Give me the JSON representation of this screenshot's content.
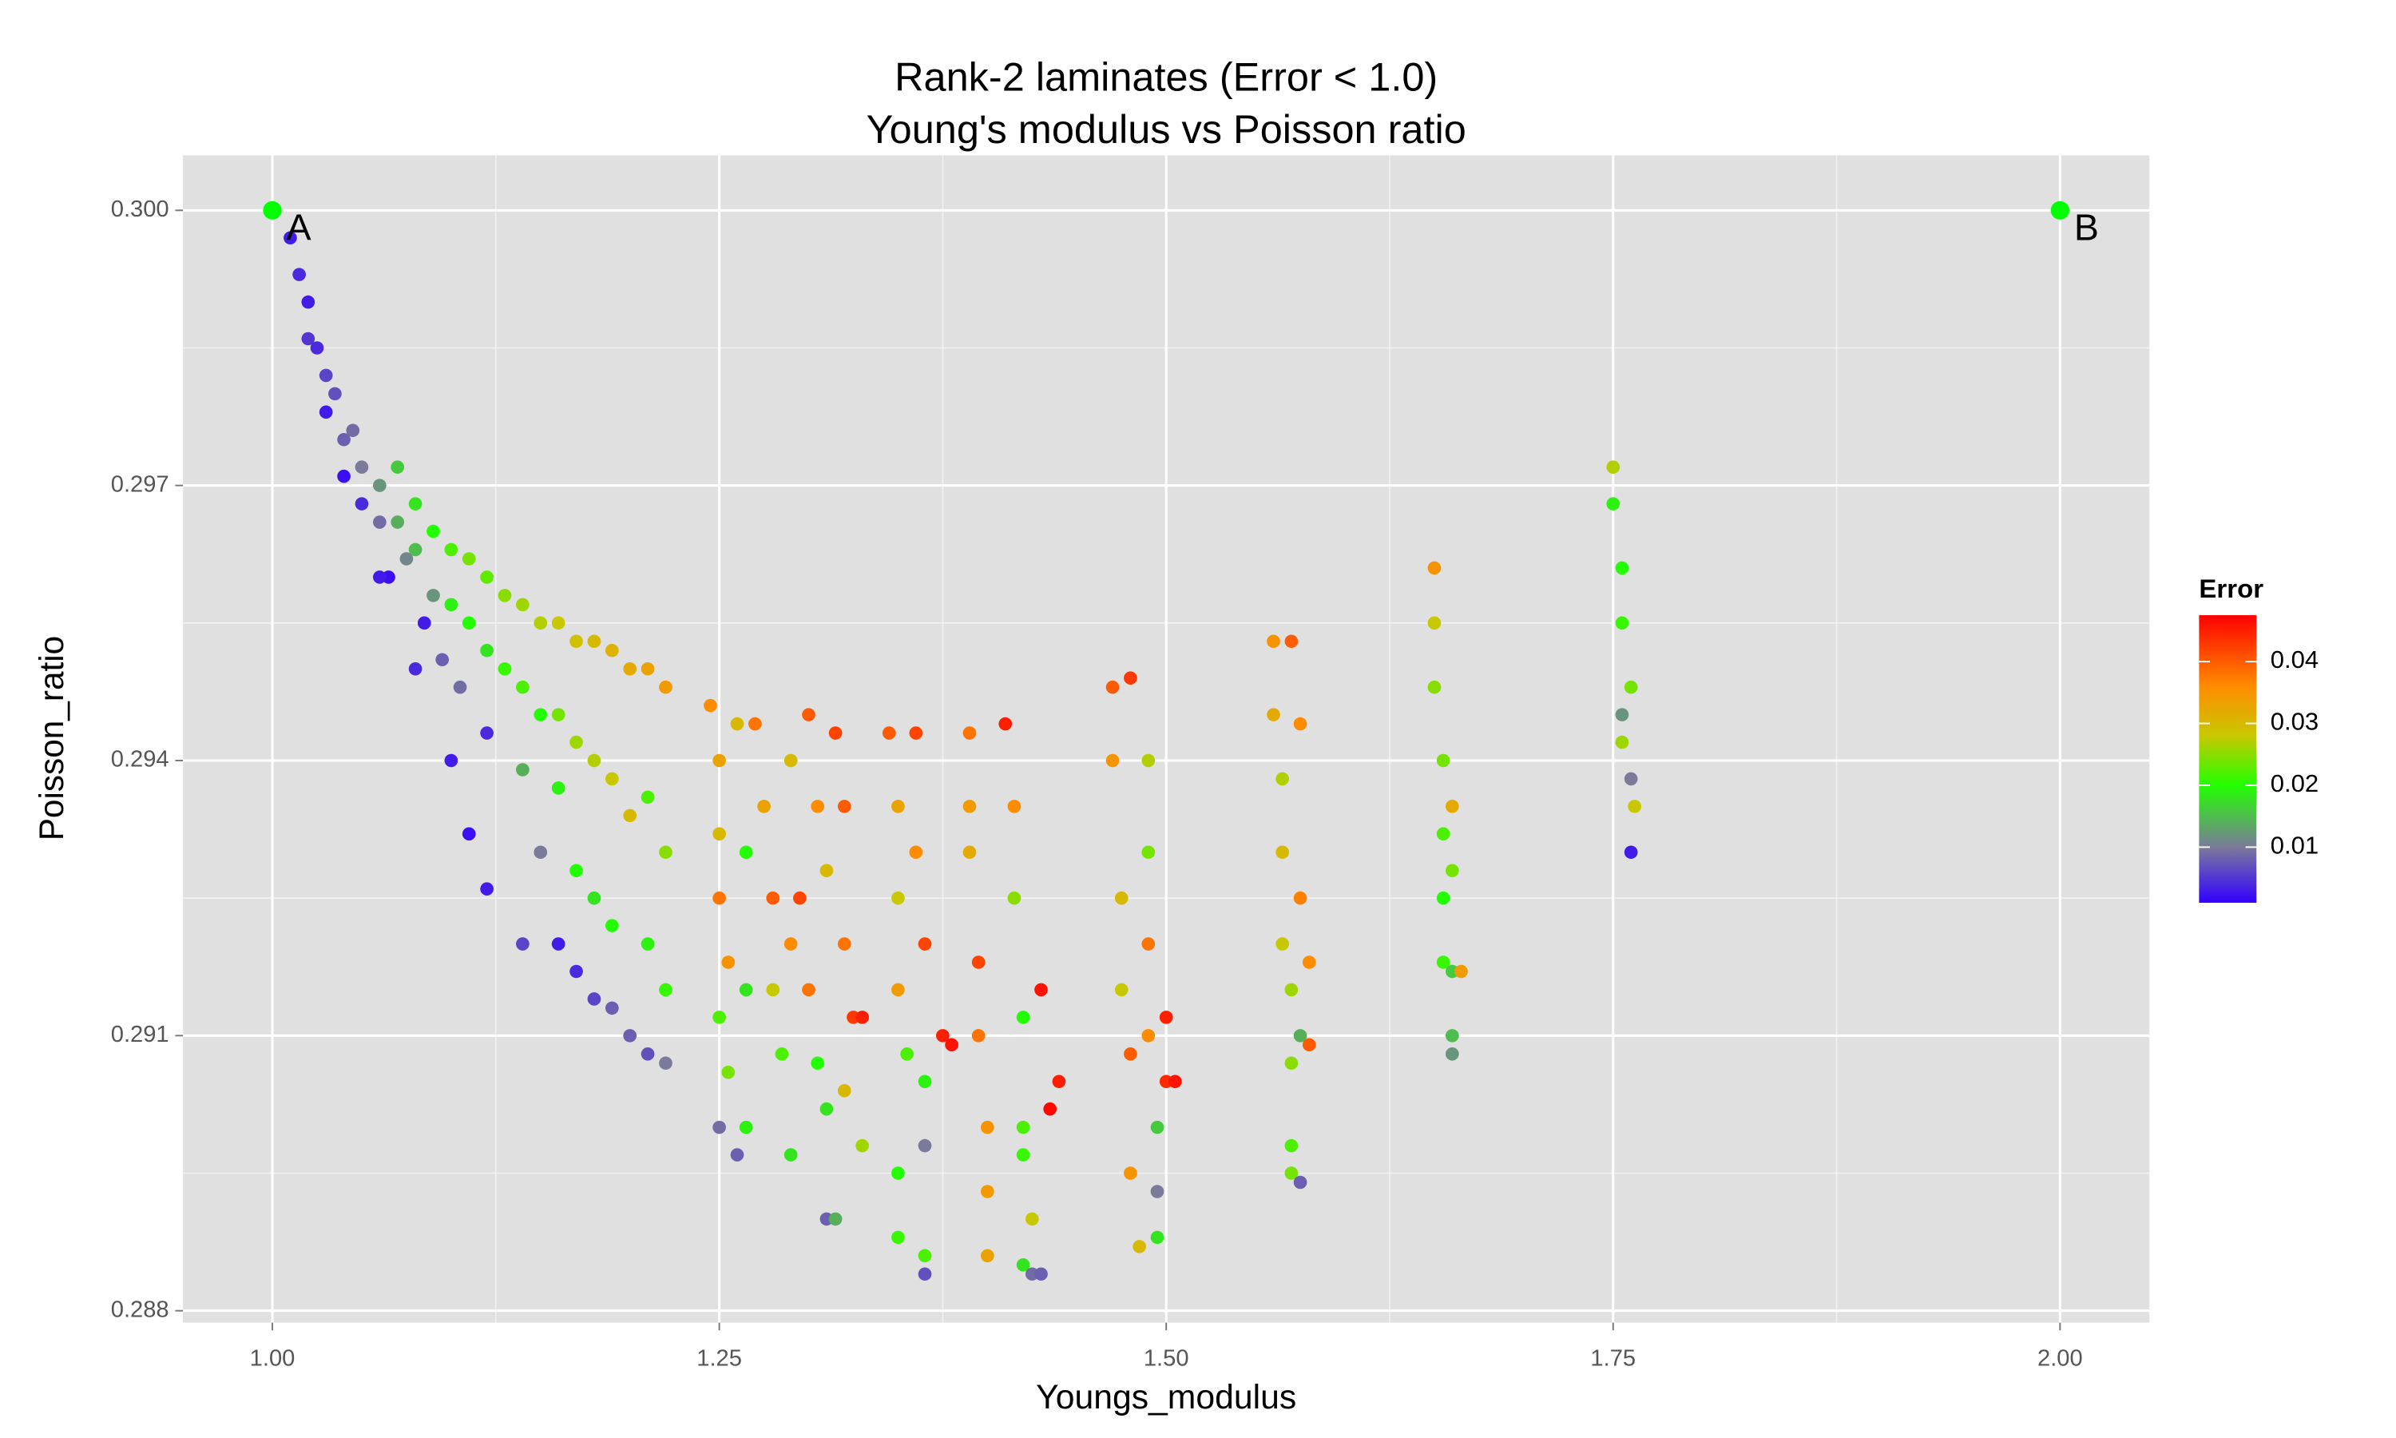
{
  "chart_data": {
    "type": "scatter",
    "title": [
      "Rank-2 laminates (Error < 1.0)",
      "Young's modulus vs Poisson ratio"
    ],
    "x_label": "Youngs_modulus",
    "y_label": "Poisson_ratio",
    "xlim": [
      0.95,
      2.05
    ],
    "ylim": [
      0.28787,
      0.3006
    ],
    "xticks": [
      {
        "value": 1.0,
        "label": "1.00"
      },
      1.25,
      {
        "value": 1.5,
        "label": "1.50"
      },
      1.75,
      {
        "value": 2.0,
        "label": "2.00"
      }
    ],
    "yticks": [
      0.288,
      0.291,
      0.294,
      0.297,
      {
        "value": 0.3,
        "label": "0.300"
      }
    ],
    "x_minor_grid": [
      1.125,
      1.375,
      1.625,
      1.875
    ],
    "y_minor_grid": [
      0.2895,
      0.2925,
      0.2955,
      0.2985
    ],
    "grid": true,
    "background": "#e0e0e0",
    "legend_position": "right",
    "colorbar": {
      "title": "Error",
      "lim": [
        0.001,
        0.0475
      ],
      "ticks": [
        0.01,
        0.02,
        0.03,
        0.04
      ],
      "stops": [
        {
          "value": 0.001,
          "color": "#3300ff"
        },
        {
          "value": 0.01,
          "color": "#7a7a9a"
        },
        {
          "value": 0.02,
          "color": "#22ff00"
        },
        {
          "value": 0.028,
          "color": "#c8c800"
        },
        {
          "value": 0.036,
          "color": "#ff8c00"
        },
        {
          "value": 0.0475,
          "color": "#ff0000"
        }
      ]
    },
    "annotations": [
      {
        "x": 1.0,
        "y": 0.3,
        "label": "A",
        "color": "#00ff00"
      },
      {
        "x": 2.0,
        "y": 0.3,
        "label": "B",
        "color": "#00ff00"
      }
    ],
    "x": [
      1.01,
      1.015,
      1.02,
      1.02,
      1.025,
      1.03,
      1.03,
      1.035,
      1.04,
      1.04,
      1.045,
      1.05,
      1.05,
      1.06,
      1.06,
      1.065,
      1.07,
      1.07,
      1.075,
      1.08,
      1.08,
      1.085,
      1.09,
      1.09,
      1.095,
      1.1,
      1.1,
      1.105,
      1.11,
      1.11,
      1.12,
      1.12,
      1.12,
      1.13,
      1.13,
      1.14,
      1.14,
      1.14,
      1.15,
      1.15,
      1.15,
      1.16,
      1.16,
      1.16,
      1.17,
      1.17,
      1.17,
      1.18,
      1.18,
      1.18,
      1.18,
      1.19,
      1.19,
      1.19,
      1.2,
      1.2,
      1.2,
      1.21,
      1.21,
      1.21,
      1.22,
      1.22,
      1.22,
      1.22,
      1.06,
      1.08,
      1.1,
      1.11,
      1.12,
      1.14,
      1.16,
      1.17,
      1.19,
      1.21,
      1.245,
      1.25,
      1.25,
      1.25,
      1.255,
      1.25,
      1.255,
      1.25,
      1.26,
      1.265,
      1.265,
      1.26,
      1.265,
      1.27,
      1.275,
      1.28,
      1.28,
      1.285,
      1.29,
      1.29,
      1.29,
      1.295,
      1.3,
      1.305,
      1.31,
      1.3,
      1.305,
      1.31,
      1.31,
      1.315,
      1.32,
      1.32,
      1.325,
      1.32,
      1.315,
      1.33,
      1.33,
      1.345,
      1.35,
      1.35,
      1.35,
      1.355,
      1.35,
      1.35,
      1.36,
      1.36,
      1.365,
      1.365,
      1.365,
      1.365,
      1.365,
      1.375,
      1.38,
      1.39,
      1.39,
      1.39,
      1.395,
      1.395,
      1.4,
      1.4,
      1.4,
      1.41,
      1.415,
      1.415,
      1.42,
      1.42,
      1.42,
      1.425,
      1.42,
      1.425,
      1.43,
      1.43,
      1.435,
      1.44,
      1.47,
      1.47,
      1.475,
      1.475,
      1.48,
      1.48,
      1.485,
      1.48,
      1.49,
      1.49,
      1.49,
      1.49,
      1.495,
      1.495,
      1.495,
      1.5,
      1.5,
      1.505,
      1.56,
      1.56,
      1.565,
      1.565,
      1.565,
      1.57,
      1.57,
      1.57,
      1.57,
      1.575,
      1.575,
      1.57,
      1.575,
      1.575,
      1.58,
      1.58,
      1.65,
      1.65,
      1.65,
      1.655,
      1.655,
      1.655,
      1.655,
      1.66,
      1.66,
      1.66,
      1.66,
      1.66,
      1.665,
      1.75,
      1.75,
      1.755,
      1.755,
      1.76,
      1.755,
      1.755,
      1.76,
      1.762,
      1.76
    ],
    "y": [
      0.2997,
      0.2993,
      0.299,
      0.2986,
      0.2985,
      0.2982,
      0.2978,
      0.298,
      0.2975,
      0.2971,
      0.2976,
      0.2972,
      0.2968,
      0.297,
      0.2966,
      0.296,
      0.2972,
      0.2966,
      0.2962,
      0.2968,
      0.2963,
      0.2955,
      0.2965,
      0.2958,
      0.2951,
      0.2963,
      0.2957,
      0.2948,
      0.2962,
      0.2955,
      0.296,
      0.2952,
      0.2943,
      0.2958,
      0.295,
      0.2957,
      0.2948,
      0.2939,
      0.2955,
      0.2945,
      0.293,
      0.2955,
      0.2945,
      0.2937,
      0.2953,
      0.2942,
      0.2928,
      0.2953,
      0.294,
      0.2925,
      0.2914,
      0.2952,
      0.2938,
      0.2922,
      0.295,
      0.2934,
      0.291,
      0.295,
      0.2936,
      0.292,
      0.2948,
      0.293,
      0.2915,
      0.2907,
      0.296,
      0.295,
      0.294,
      0.2932,
      0.2926,
      0.292,
      0.292,
      0.2917,
      0.2913,
      0.2908,
      0.2946,
      0.294,
      0.2932,
      0.2925,
      0.2918,
      0.2912,
      0.2906,
      0.29,
      0.2944,
      0.293,
      0.2915,
      0.2897,
      0.29,
      0.2944,
      0.2935,
      0.2925,
      0.2915,
      0.2908,
      0.294,
      0.292,
      0.2897,
      0.2925,
      0.2945,
      0.2935,
      0.2928,
      0.2915,
      0.2907,
      0.2902,
      0.289,
      0.2943,
      0.2935,
      0.292,
      0.2912,
      0.2904,
      0.289,
      0.2912,
      0.2898,
      0.2943,
      0.2935,
      0.2925,
      0.2915,
      0.2908,
      0.2895,
      0.2888,
      0.2943,
      0.293,
      0.292,
      0.2905,
      0.2898,
      0.2886,
      0.2884,
      0.291,
      0.2909,
      0.2943,
      0.2935,
      0.293,
      0.2918,
      0.291,
      0.29,
      0.2893,
      0.2886,
      0.2944,
      0.2935,
      0.2925,
      0.2912,
      0.29,
      0.2897,
      0.289,
      0.2885,
      0.2884,
      0.2884,
      0.2915,
      0.2902,
      0.2905,
      0.2948,
      0.294,
      0.2925,
      0.2915,
      0.2908,
      0.2895,
      0.2887,
      0.2949,
      0.294,
      0.293,
      0.292,
      0.291,
      0.29,
      0.2893,
      0.2888,
      0.2912,
      0.2905,
      0.2905,
      0.2953,
      0.2945,
      0.2938,
      0.293,
      0.292,
      0.2915,
      0.2907,
      0.2898,
      0.2895,
      0.2894,
      0.291,
      0.2953,
      0.2944,
      0.2925,
      0.2918,
      0.2909,
      0.2961,
      0.2955,
      0.2948,
      0.294,
      0.2932,
      0.2925,
      0.2918,
      0.2935,
      0.2928,
      0.2917,
      0.291,
      0.2908,
      0.2917,
      0.2972,
      0.2968,
      0.2961,
      0.2955,
      0.2948,
      0.2945,
      0.2942,
      0.2938,
      0.2935,
      0.293
    ],
    "error": [
      0.003,
      0.004,
      0.003,
      0.005,
      0.004,
      0.006,
      0.003,
      0.007,
      0.008,
      0.002,
      0.009,
      0.01,
      0.004,
      0.012,
      0.009,
      0.002,
      0.016,
      0.014,
      0.011,
      0.018,
      0.015,
      0.003,
      0.02,
      0.012,
      0.008,
      0.022,
      0.019,
      0.009,
      0.024,
      0.02,
      0.023,
      0.018,
      0.004,
      0.025,
      0.021,
      0.026,
      0.022,
      0.014,
      0.027,
      0.02,
      0.01,
      0.028,
      0.024,
      0.019,
      0.029,
      0.026,
      0.02,
      0.03,
      0.027,
      0.018,
      0.006,
      0.031,
      0.028,
      0.02,
      0.032,
      0.03,
      0.008,
      0.033,
      0.022,
      0.019,
      0.034,
      0.025,
      0.021,
      0.01,
      0.003,
      0.004,
      0.003,
      0.002,
      0.003,
      0.006,
      0.003,
      0.004,
      0.008,
      0.007,
      0.036,
      0.033,
      0.03,
      0.038,
      0.035,
      0.022,
      0.024,
      0.009,
      0.03,
      0.02,
      0.018,
      0.008,
      0.019,
      0.038,
      0.033,
      0.04,
      0.028,
      0.022,
      0.03,
      0.036,
      0.018,
      0.042,
      0.04,
      0.036,
      0.03,
      0.038,
      0.02,
      0.018,
      0.008,
      0.042,
      0.04,
      0.038,
      0.043,
      0.03,
      0.014,
      0.045,
      0.026,
      0.04,
      0.033,
      0.028,
      0.034,
      0.022,
      0.02,
      0.021,
      0.042,
      0.036,
      0.042,
      0.019,
      0.01,
      0.022,
      0.007,
      0.045,
      0.046,
      0.038,
      0.034,
      0.032,
      0.042,
      0.038,
      0.035,
      0.034,
      0.033,
      0.045,
      0.036,
      0.025,
      0.02,
      0.022,
      0.021,
      0.028,
      0.018,
      0.009,
      0.008,
      0.046,
      0.047,
      0.045,
      0.04,
      0.035,
      0.03,
      0.028,
      0.04,
      0.035,
      0.03,
      0.043,
      0.027,
      0.024,
      0.038,
      0.036,
      0.016,
      0.01,
      0.018,
      0.045,
      0.044,
      0.046,
      0.035,
      0.032,
      0.027,
      0.03,
      0.028,
      0.026,
      0.025,
      0.022,
      0.024,
      0.008,
      0.014,
      0.04,
      0.036,
      0.037,
      0.036,
      0.04,
      0.035,
      0.028,
      0.025,
      0.024,
      0.022,
      0.02,
      0.021,
      0.032,
      0.024,
      0.016,
      0.015,
      0.012,
      0.034,
      0.027,
      0.019,
      0.02,
      0.021,
      0.024,
      0.012,
      0.026,
      0.01,
      0.028,
      0.003
    ]
  }
}
